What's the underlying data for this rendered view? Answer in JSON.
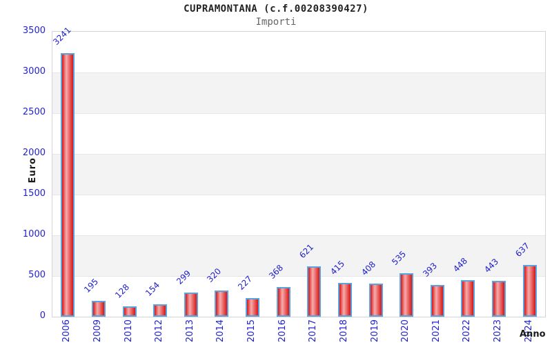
{
  "chart_data": {
    "type": "bar",
    "title": "CUPRAMONTANA (c.f.00208390427)",
    "subtitle": "Importi",
    "xlabel": "Anno",
    "ylabel": "Euro",
    "categories": [
      "2006",
      "2009",
      "2010",
      "2012",
      "2013",
      "2014",
      "2015",
      "2016",
      "2017",
      "2018",
      "2019",
      "2020",
      "2021",
      "2022",
      "2023",
      "2024"
    ],
    "values": [
      3241,
      195,
      128,
      154,
      299,
      320,
      227,
      368,
      621,
      415,
      408,
      535,
      393,
      448,
      443,
      637
    ],
    "ylim": [
      0,
      3500
    ],
    "ytick_step": 500,
    "yticks": [
      0,
      500,
      1000,
      1500,
      2000,
      2500,
      3000,
      3500
    ],
    "grid": true,
    "legend_position": "none",
    "banded_background": true
  },
  "colors": {
    "bar_fill_dark": "#d91414",
    "bar_fill_light": "#f6adad",
    "bar_border": "#5ba3dc",
    "tick_label": "#2222cc",
    "value_label": "#2222cc",
    "band_gray": "#f3f3f3",
    "band_white": "#ffffff",
    "gridline": "#e6e6e6",
    "plot_border": "#d4d4d4",
    "title_color": "#222222",
    "subtitle_color": "#666666",
    "axis_title_color": "#1a1a1a"
  }
}
